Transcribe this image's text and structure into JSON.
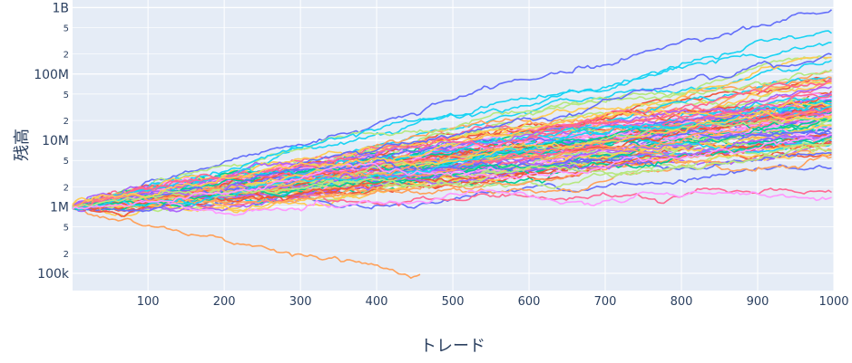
{
  "chart_data": {
    "type": "line",
    "title": "",
    "xlabel": "トレード",
    "ylabel": "残高",
    "x_range": [
      1,
      1000
    ],
    "y_scale": "log",
    "y_range": [
      55000,
      1300000000
    ],
    "x_ticks": [
      {
        "value": 100,
        "label": "100"
      },
      {
        "value": 200,
        "label": "200"
      },
      {
        "value": 300,
        "label": "300"
      },
      {
        "value": 400,
        "label": "400"
      },
      {
        "value": 500,
        "label": "500"
      },
      {
        "value": 600,
        "label": "600"
      },
      {
        "value": 700,
        "label": "700"
      },
      {
        "value": 800,
        "label": "800"
      },
      {
        "value": 900,
        "label": "900"
      },
      {
        "value": 1000,
        "label": "1000"
      }
    ],
    "y_major_ticks": [
      {
        "value": 100000,
        "label": "100k"
      },
      {
        "value": 1000000,
        "label": "1M"
      },
      {
        "value": 10000000,
        "label": "10M"
      },
      {
        "value": 100000000,
        "label": "100M"
      },
      {
        "value": 1000000000,
        "label": "1B"
      }
    ],
    "y_minor_ticks": [
      {
        "value": 200000,
        "label": "2"
      },
      {
        "value": 500000,
        "label": "5"
      },
      {
        "value": 2000000,
        "label": "2"
      },
      {
        "value": 5000000,
        "label": "5"
      },
      {
        "value": 20000000,
        "label": "2"
      },
      {
        "value": 50000000,
        "label": "5"
      },
      {
        "value": 200000000,
        "label": "2"
      },
      {
        "value": 500000000,
        "label": "5"
      }
    ],
    "grid": true,
    "legend": "none",
    "colors": [
      "#636efa",
      "#EF553B",
      "#00cc96",
      "#ab63fa",
      "#FFA15A",
      "#19d3f3",
      "#FF6692",
      "#B6E880",
      "#FF97FF",
      "#FECB52"
    ],
    "series_count": 100,
    "start_value": 1000000,
    "highlighted_series": [
      {
        "ends_at_trade": 460,
        "final_value": 95000,
        "color": "#FFA15A"
      },
      {
        "ends_at_trade": 1000,
        "final_value": 950000000,
        "color": "#636efa"
      },
      {
        "ends_at_trade": 1000,
        "final_value": 420000000,
        "color": "#19d3f3"
      }
    ]
  }
}
